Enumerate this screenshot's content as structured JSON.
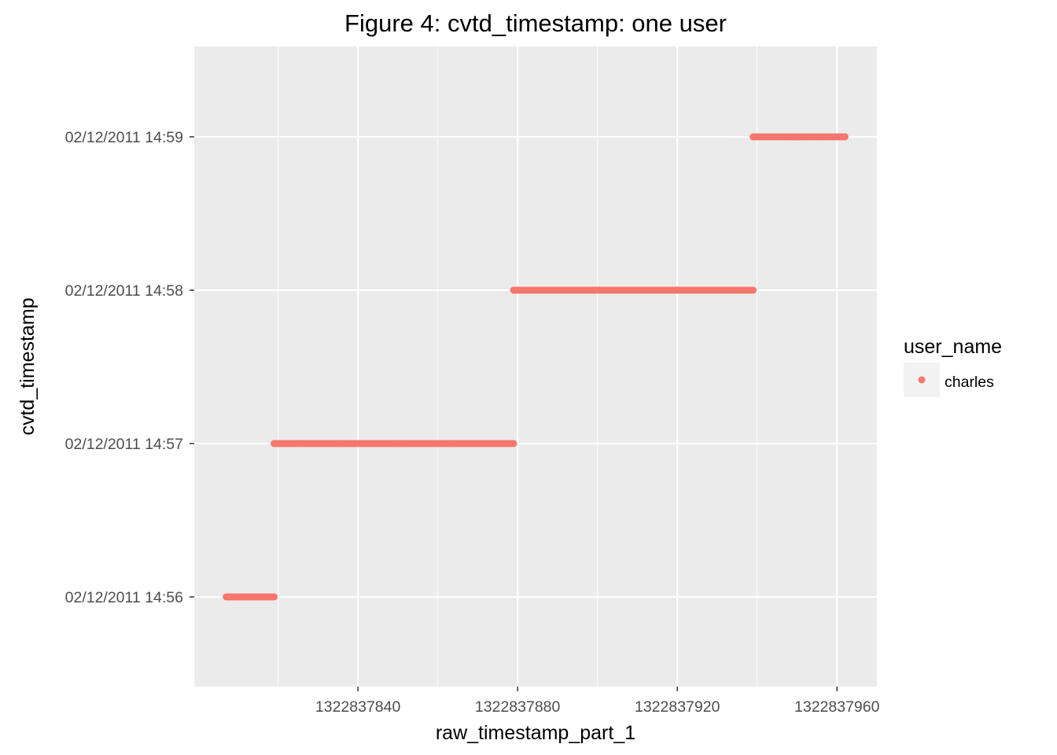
{
  "chart_data": {
    "type": "scatter",
    "title": "Figure 4: cvtd_timestamp: one user",
    "xlabel": "raw_timestamp_part_1",
    "ylabel": "cvtd_timestamp",
    "xlim": [
      1322837799,
      1322837970
    ],
    "x_ticks": [
      1322837840,
      1322837880,
      1322837920,
      1322837960
    ],
    "x_tick_labels": [
      "1322837840",
      "1322837880",
      "1322837920",
      "1322837960"
    ],
    "y_categories": [
      "02/12/2011 14:56",
      "02/12/2011 14:57",
      "02/12/2011 14:58",
      "02/12/2011 14:59"
    ],
    "grid": true,
    "legend": {
      "title": "user_name",
      "position": "right",
      "entries": [
        "charles"
      ]
    },
    "series": [
      {
        "name": "charles",
        "color": "#F8766D",
        "segments": [
          {
            "y": "02/12/2011 14:56",
            "x_start": 1322837807,
            "x_end": 1322837819
          },
          {
            "y": "02/12/2011 14:57",
            "x_start": 1322837819,
            "x_end": 1322837879
          },
          {
            "y": "02/12/2011 14:58",
            "x_start": 1322837879,
            "x_end": 1322837939
          },
          {
            "y": "02/12/2011 14:59",
            "x_start": 1322837939,
            "x_end": 1322837962
          }
        ]
      }
    ]
  }
}
